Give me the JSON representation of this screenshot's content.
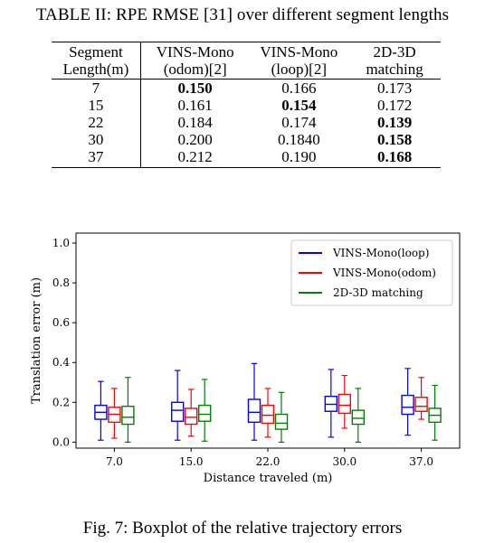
{
  "table": {
    "caption": "TABLE II: RPE RMSE [31] over different segment lengths",
    "header_top": [
      "Segment",
      "VINS-Mono",
      "VINS-Mono",
      "2D-3D"
    ],
    "header_bottom": [
      "Length(m)",
      "(odom)[2]",
      "(loop)[2]",
      "matching"
    ],
    "rows": [
      {
        "cells": [
          "7",
          "0.150",
          "0.166",
          "0.173"
        ],
        "bold": 1
      },
      {
        "cells": [
          "15",
          "0.161",
          "0.154",
          "0.172"
        ],
        "bold": 2
      },
      {
        "cells": [
          "22",
          "0.184",
          "0.174",
          "0.139"
        ],
        "bold": 3
      },
      {
        "cells": [
          "30",
          "0.200",
          "0.1840",
          "0.158"
        ],
        "bold": 3
      },
      {
        "cells": [
          "37",
          "0.212",
          "0.190",
          "0.168"
        ],
        "bold": 3
      }
    ]
  },
  "chart_data": {
    "type": "boxplot",
    "xlabel": "Distance traveled (m)",
    "ylabel": "Translation error (m)",
    "categories": [
      "7.0",
      "15.0",
      "22.0",
      "30.0",
      "37.0"
    ],
    "ylim": [
      -0.03,
      1.05
    ],
    "yticks": [
      "0.0",
      "0.2",
      "0.4",
      "0.6",
      "0.8",
      "1.0"
    ],
    "legend_position": "top-right",
    "grid": false,
    "series": [
      {
        "name": "VINS-Mono(loop)",
        "color": "#0000ff",
        "boxes": [
          {
            "min": 0.01,
            "q1": 0.115,
            "median": 0.15,
            "q3": 0.185,
            "max": 0.305
          },
          {
            "min": 0.01,
            "q1": 0.105,
            "median": 0.16,
            "q3": 0.2,
            "max": 0.36
          },
          {
            "min": 0.01,
            "q1": 0.1,
            "median": 0.15,
            "q3": 0.215,
            "max": 0.395
          },
          {
            "min": 0.025,
            "q1": 0.155,
            "median": 0.19,
            "q3": 0.23,
            "max": 0.365
          },
          {
            "min": 0.035,
            "q1": 0.14,
            "median": 0.175,
            "q3": 0.235,
            "max": 0.37
          }
        ]
      },
      {
        "name": "VINS-Mono(odom)",
        "color": "#ff0000",
        "boxes": [
          {
            "min": 0.02,
            "q1": 0.1,
            "median": 0.14,
            "q3": 0.175,
            "max": 0.27
          },
          {
            "min": 0.03,
            "q1": 0.09,
            "median": 0.125,
            "q3": 0.17,
            "max": 0.265
          },
          {
            "min": 0.025,
            "q1": 0.095,
            "median": 0.135,
            "q3": 0.185,
            "max": 0.27
          },
          {
            "min": 0.07,
            "q1": 0.145,
            "median": 0.185,
            "q3": 0.24,
            "max": 0.335
          },
          {
            "min": 0.115,
            "q1": 0.155,
            "median": 0.18,
            "q3": 0.225,
            "max": 0.325
          }
        ]
      },
      {
        "name": "2D-3D matching",
        "color": "#008000",
        "boxes": [
          {
            "min": 0.0,
            "q1": 0.09,
            "median": 0.125,
            "q3": 0.18,
            "max": 0.325
          },
          {
            "min": 0.005,
            "q1": 0.105,
            "median": 0.14,
            "q3": 0.185,
            "max": 0.315
          },
          {
            "min": 0.0,
            "q1": 0.065,
            "median": 0.095,
            "q3": 0.14,
            "max": 0.25
          },
          {
            "min": 0.0,
            "q1": 0.09,
            "median": 0.12,
            "q3": 0.16,
            "max": 0.27
          },
          {
            "min": 0.01,
            "q1": 0.1,
            "median": 0.135,
            "q3": 0.17,
            "max": 0.285
          }
        ]
      }
    ]
  },
  "figure_caption": "Fig. 7: Boxplot of the relative trajectory errors"
}
